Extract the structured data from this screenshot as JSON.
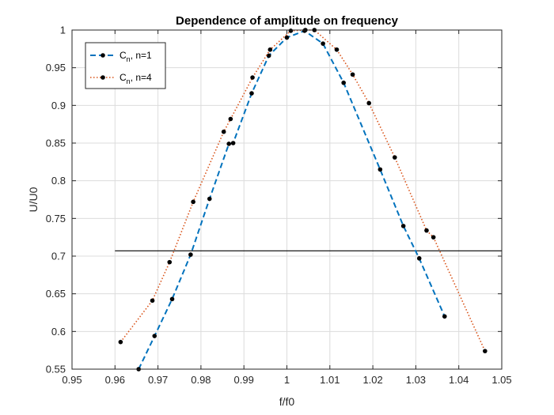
{
  "chart_data": {
    "type": "line",
    "title": "Dependence of amplitude on frequency",
    "xlabel": "f/f0",
    "ylabel": "U/U0",
    "xlim": [
      0.95,
      1.05
    ],
    "ylim": [
      0.55,
      1.0
    ],
    "xticks": [
      0.95,
      0.96,
      0.97,
      0.98,
      0.99,
      1.0,
      1.01,
      1.02,
      1.03,
      1.04,
      1.05
    ],
    "xtick_labels": [
      "0.95",
      "0.96",
      "0.97",
      "0.98",
      "0.99",
      "1",
      "1.01",
      "1.02",
      "1.03",
      "1.04",
      "1.05"
    ],
    "yticks": [
      0.55,
      0.6,
      0.65,
      0.7,
      0.75,
      0.8,
      0.85,
      0.9,
      0.95,
      1.0
    ],
    "ytick_labels": [
      "0.55",
      "0.6",
      "0.65",
      "0.7",
      "0.75",
      "0.8",
      "0.85",
      "0.9",
      "0.95",
      "1"
    ],
    "grid": true,
    "legend_position": "top-left",
    "series": [
      {
        "legend_main": "C",
        "legend_sub": "n",
        "legend_rest": ", n=1",
        "style": "dashed",
        "color": "#0072BD",
        "x": [
          0.9655,
          0.9692,
          0.9733,
          0.9776,
          0.982,
          0.9865,
          0.9875,
          0.9918,
          0.9958,
          1.0,
          1.0041,
          1.0084,
          1.0132,
          1.0217,
          1.0271,
          1.0308,
          1.0367
        ],
        "y": [
          0.55,
          0.594,
          0.643,
          0.702,
          0.776,
          0.849,
          0.85,
          0.916,
          0.966,
          0.99,
          0.999,
          0.982,
          0.93,
          0.815,
          0.74,
          0.697,
          0.62
        ]
      },
      {
        "legend_main": "C",
        "legend_sub": "n",
        "legend_rest": ", n=4",
        "style": "dotted",
        "color": "#D95319",
        "x": [
          0.9613,
          0.9687,
          0.9727,
          0.9782,
          0.9853,
          0.9869,
          0.992,
          0.9961,
          1.0009,
          1.0043,
          1.0064,
          1.0116,
          1.0153,
          1.0191,
          1.0251,
          1.0325,
          1.0341,
          1.0461
        ],
        "y": [
          0.586,
          0.641,
          0.692,
          0.772,
          0.865,
          0.882,
          0.937,
          0.974,
          0.999,
          1.0,
          1.0,
          0.974,
          0.941,
          0.903,
          0.831,
          0.734,
          0.725,
          0.574
        ]
      }
    ],
    "reference_line": {
      "y": 0.707,
      "x_start": 0.96,
      "x_end": 1.05,
      "color": "#000000"
    }
  }
}
